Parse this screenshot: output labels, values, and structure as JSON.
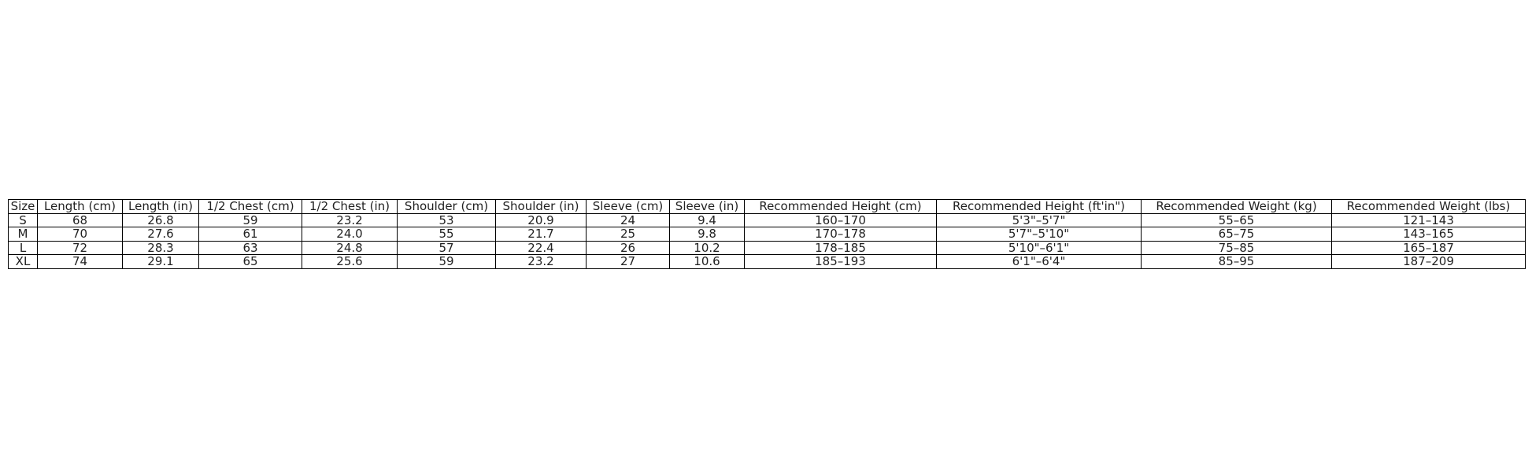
{
  "table": {
    "headers": [
      "Size",
      "Length (cm)",
      "Length (in)",
      "1/2 Chest (cm)",
      "1/2 Chest (in)",
      "Shoulder (cm)",
      "Shoulder (in)",
      "Sleeve (cm)",
      "Sleeve (in)",
      "Recommended Height (cm)",
      "Recommended Height (ft'in\")",
      "Recommended Weight (kg)",
      "Recommended Weight (lbs)"
    ],
    "rows": [
      [
        "S",
        "68",
        "26.8",
        "59",
        "23.2",
        "53",
        "20.9",
        "24",
        "9.4",
        "160–170",
        "5'3\"–5'7\"",
        "55–65",
        "121–143"
      ],
      [
        "M",
        "70",
        "27.6",
        "61",
        "24.0",
        "55",
        "21.7",
        "25",
        "9.8",
        "170–178",
        "5'7\"–5'10\"",
        "65–75",
        "143–165"
      ],
      [
        "L",
        "72",
        "28.3",
        "63",
        "24.8",
        "57",
        "22.4",
        "26",
        "10.2",
        "178–185",
        "5'10\"–6'1\"",
        "75–85",
        "165–187"
      ],
      [
        "XL",
        "74",
        "29.1",
        "65",
        "25.6",
        "59",
        "23.2",
        "27",
        "10.6",
        "185–193",
        "6'1\"–6'4\"",
        "85–95",
        "187–209"
      ]
    ]
  }
}
